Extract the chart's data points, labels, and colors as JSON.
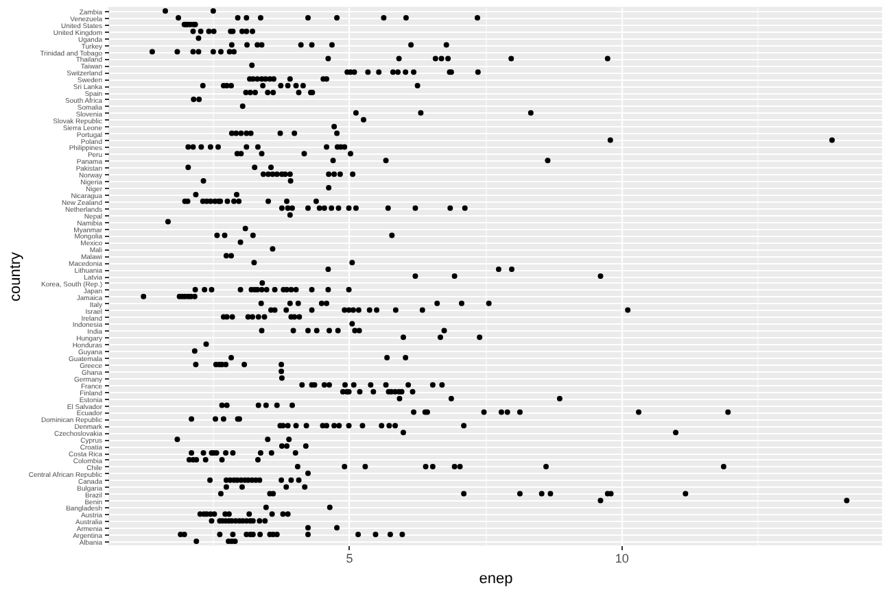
{
  "chart_data": {
    "type": "scatter",
    "orientation": "horizontal",
    "xlabel": "enep",
    "ylabel": "country",
    "marker": "circle",
    "grid": true,
    "xlim": [
      0.585,
      14.79
    ],
    "xticks": [
      {
        "value": 2.5,
        "label": null
      },
      5,
      {
        "value": 7.5,
        "label": null
      },
      10,
      {
        "value": 12.5,
        "label": null
      }
    ],
    "categories": [
      "Zambia",
      "Venezuela",
      "United States",
      "United Kingdom",
      "Uganda",
      "Turkey",
      "Trinidad and Tobago",
      "Thailand",
      "Taiwan",
      "Switzerland",
      "Sweden",
      "Sri Lanka",
      "Spain",
      "South Africa",
      "Somalia",
      "Slovenia",
      "Slovak Republic",
      "Sierra Leone",
      "Portugal",
      "Poland",
      "Philippines",
      "Peru",
      "Panama",
      "Pakistan",
      "Norway",
      "Nigeria",
      "Niger",
      "Nicaragua",
      "New Zealand",
      "Netherlands",
      "Nepal",
      "Namibia",
      "Myanmar",
      "Mongolia",
      "Mexico",
      "Mali",
      "Malawi",
      "Macedonia",
      "Lithuania",
      "Latvia",
      "Korea, South (Rep.)",
      "Japan",
      "Jamaica",
      "Italy",
      "Israel",
      "Ireland",
      "Indonesia",
      "India",
      "Hungary",
      "Honduras",
      "Guyana",
      "Guatemala",
      "Greece",
      "Ghana",
      "Germany",
      "France",
      "Finland",
      "Estonia",
      "El Salvador",
      "Ecuador",
      "Dominican Republic",
      "Denmark",
      "Czechoslovakia",
      "Cyprus",
      "Croatia",
      "Costa Rica",
      "Colombia",
      "Chile",
      "Central African Republic",
      "Canada",
      "Bulgaria",
      "Brazil",
      "Benin",
      "Bangladesh",
      "Austria",
      "Australia",
      "Armenia",
      "Argentina",
      "Albania"
    ],
    "series": [
      {
        "color": "#000000",
        "x": [
          "Zambia",
          "Zambia",
          "Venezuela",
          "Venezuela",
          "Venezuela",
          "Venezuela",
          "Venezuela",
          "Venezuela",
          "Venezuela",
          "Venezuela",
          "Venezuela",
          "United States",
          "United States",
          "United States",
          "United States",
          "United States",
          "United States",
          "United Kingdom",
          "United Kingdom",
          "United Kingdom",
          "United Kingdom",
          "United Kingdom",
          "United Kingdom",
          "United Kingdom",
          "United Kingdom",
          "United Kingdom",
          "Uganda",
          "Turkey",
          "Turkey",
          "Turkey",
          "Turkey",
          "Turkey",
          "Turkey",
          "Turkey",
          "Turkey",
          "Turkey",
          "Trinidad and Tobago",
          "Trinidad and Tobago",
          "Trinidad and Tobago",
          "Trinidad and Tobago",
          "Trinidad and Tobago",
          "Trinidad and Tobago",
          "Trinidad and Tobago",
          "Trinidad and Tobago",
          "Thailand",
          "Thailand",
          "Thailand",
          "Thailand",
          "Thailand",
          "Thailand",
          "Thailand",
          "Taiwan",
          "Switzerland",
          "Switzerland",
          "Switzerland",
          "Switzerland",
          "Switzerland",
          "Switzerland",
          "Switzerland",
          "Switzerland",
          "Switzerland",
          "Switzerland",
          "Switzerland",
          "Switzerland",
          "Sweden",
          "Sweden",
          "Sweden",
          "Sweden",
          "Sweden",
          "Sweden",
          "Sweden",
          "Sweden",
          "Sweden",
          "Sweden",
          "Sri Lanka",
          "Sri Lanka",
          "Sri Lanka",
          "Sri Lanka",
          "Sri Lanka",
          "Sri Lanka",
          "Sri Lanka",
          "Sri Lanka",
          "Sri Lanka",
          "Sri Lanka",
          "Spain",
          "Spain",
          "Spain",
          "Spain",
          "Spain",
          "Spain",
          "Spain",
          "Spain",
          "South Africa",
          "South Africa",
          "Somalia",
          "Slovenia",
          "Slovenia",
          "Slovenia",
          "Slovak Republic",
          "Sierra Leone",
          "Portugal",
          "Portugal",
          "Portugal",
          "Portugal",
          "Portugal",
          "Portugal",
          "Portugal",
          "Portugal",
          "Poland",
          "Poland",
          "Philippines",
          "Philippines",
          "Philippines",
          "Philippines",
          "Philippines",
          "Philippines",
          "Philippines",
          "Philippines",
          "Philippines",
          "Philippines",
          "Philippines",
          "Peru",
          "Peru",
          "Peru",
          "Peru",
          "Peru",
          "Panama",
          "Panama",
          "Panama",
          "Pakistan",
          "Pakistan",
          "Pakistan",
          "Norway",
          "Norway",
          "Norway",
          "Norway",
          "Norway",
          "Norway",
          "Norway",
          "Norway",
          "Norway",
          "Norway",
          "Norway",
          "Nigeria",
          "Nigeria",
          "Niger",
          "Nicaragua",
          "Nicaragua",
          "New Zealand",
          "New Zealand",
          "New Zealand",
          "New Zealand",
          "New Zealand",
          "New Zealand",
          "New Zealand",
          "New Zealand",
          "New Zealand",
          "New Zealand",
          "New Zealand",
          "New Zealand",
          "New Zealand",
          "New Zealand",
          "Netherlands",
          "Netherlands",
          "Netherlands",
          "Netherlands",
          "Netherlands",
          "Netherlands",
          "Netherlands",
          "Netherlands",
          "Netherlands",
          "Netherlands",
          "Netherlands",
          "Netherlands",
          "Netherlands",
          "Netherlands",
          "Nepal",
          "Namibia",
          "Myanmar",
          "Mongolia",
          "Mongolia",
          "Mongolia",
          "Mongolia",
          "Mexico",
          "Mali",
          "Malawi",
          "Malawi",
          "Macedonia",
          "Macedonia",
          "Lithuania",
          "Lithuania",
          "Lithuania",
          "Latvia",
          "Latvia",
          "Latvia",
          "Korea, South (Rep.)",
          "Japan",
          "Japan",
          "Japan",
          "Japan",
          "Japan",
          "Japan",
          "Japan",
          "Japan",
          "Japan",
          "Japan",
          "Japan",
          "Japan",
          "Japan",
          "Japan",
          "Japan",
          "Japan",
          "Japan",
          "Jamaica",
          "Jamaica",
          "Jamaica",
          "Jamaica",
          "Jamaica",
          "Jamaica",
          "Jamaica",
          "Italy",
          "Italy",
          "Italy",
          "Italy",
          "Italy",
          "Italy",
          "Italy",
          "Italy",
          "Israel",
          "Israel",
          "Israel",
          "Israel",
          "Israel",
          "Israel",
          "Israel",
          "Israel",
          "Israel",
          "Israel",
          "Israel",
          "Israel",
          "Israel",
          "Ireland",
          "Ireland",
          "Ireland",
          "Ireland",
          "Ireland",
          "Ireland",
          "Ireland",
          "Ireland",
          "Ireland",
          "Ireland",
          "Indonesia",
          "India",
          "India",
          "India",
          "India",
          "India",
          "India",
          "India",
          "India",
          "India",
          "Hungary",
          "Hungary",
          "Hungary",
          "Honduras",
          "Guyana",
          "Guatemala",
          "Guatemala",
          "Guatemala",
          "Greece",
          "Greece",
          "Greece",
          "Greece",
          "Greece",
          "Greece",
          "Greece",
          "Ghana",
          "Germany",
          "France",
          "France",
          "France",
          "France",
          "France",
          "France",
          "France",
          "France",
          "France",
          "France",
          "France",
          "France",
          "Finland",
          "Finland",
          "Finland",
          "Finland",
          "Finland",
          "Finland",
          "Finland",
          "Finland",
          "Finland",
          "Finland",
          "Finland",
          "Estonia",
          "Estonia",
          "Estonia",
          "El Salvador",
          "El Salvador",
          "El Salvador",
          "El Salvador",
          "El Salvador",
          "El Salvador",
          "Ecuador",
          "Ecuador",
          "Ecuador",
          "Ecuador",
          "Ecuador",
          "Ecuador",
          "Ecuador",
          "Ecuador",
          "Ecuador",
          "Dominican Republic",
          "Dominican Republic",
          "Dominican Republic",
          "Dominican Republic",
          "Dominican Republic",
          "Denmark",
          "Denmark",
          "Denmark",
          "Denmark",
          "Denmark",
          "Denmark",
          "Denmark",
          "Denmark",
          "Denmark",
          "Denmark",
          "Denmark",
          "Denmark",
          "Denmark",
          "Denmark",
          "Denmark",
          "Czechoslovakia",
          "Czechoslovakia",
          "Cyprus",
          "Cyprus",
          "Cyprus",
          "Croatia",
          "Croatia",
          "Croatia",
          "Costa Rica",
          "Costa Rica",
          "Costa Rica",
          "Costa Rica",
          "Costa Rica",
          "Costa Rica",
          "Costa Rica",
          "Costa Rica",
          "Costa Rica",
          "Costa Rica",
          "Colombia",
          "Colombia",
          "Colombia",
          "Colombia",
          "Colombia",
          "Colombia",
          "Chile",
          "Chile",
          "Chile",
          "Chile",
          "Chile",
          "Chile",
          "Chile",
          "Chile",
          "Chile",
          "Central African Republic",
          "Canada",
          "Canada",
          "Canada",
          "Canada",
          "Canada",
          "Canada",
          "Canada",
          "Canada",
          "Canada",
          "Canada",
          "Canada",
          "Canada",
          "Canada",
          "Canada",
          "Bulgaria",
          "Bulgaria",
          "Bulgaria",
          "Bulgaria",
          "Brazil",
          "Brazil",
          "Brazil",
          "Brazil",
          "Brazil",
          "Brazil",
          "Brazil",
          "Brazil",
          "Brazil",
          "Brazil",
          "Benin",
          "Benin",
          "Bangladesh",
          "Bangladesh",
          "Austria",
          "Austria",
          "Austria",
          "Austria",
          "Austria",
          "Austria",
          "Austria",
          "Austria",
          "Austria",
          "Austria",
          "Austria",
          "Australia",
          "Australia",
          "Australia",
          "Australia",
          "Australia",
          "Australia",
          "Australia",
          "Australia",
          "Australia",
          "Australia",
          "Australia",
          "Australia",
          "Australia",
          "Australia",
          "Armenia",
          "Armenia",
          "Argentina",
          "Argentina",
          "Argentina",
          "Argentina",
          "Argentina",
          "Argentina",
          "Argentina",
          "Argentina",
          "Argentina",
          "Argentina",
          "Argentina",
          "Argentina",
          "Argentina",
          "Argentina",
          "Argentina",
          "Argentina",
          "Albania",
          "Albania",
          "Albania",
          "Albania"
        ],
        "values": [
          1.63,
          2.51,
          1.87,
          2.96,
          3.12,
          3.38,
          4.25,
          4.78,
          5.64,
          6.05,
          7.36,
          1.98,
          2.01,
          2.04,
          2.09,
          2.15,
          2.18,
          2.14,
          2.28,
          2.43,
          2.52,
          2.83,
          2.87,
          3.04,
          3.12,
          3.23,
          2.24,
          2.85,
          3.13,
          3.32,
          3.4,
          4.12,
          4.32,
          4.69,
          6.14,
          6.79,
          1.39,
          1.85,
          2.14,
          2.24,
          2.51,
          2.65,
          2.81,
          2.89,
          4.62,
          5.92,
          6.59,
          6.7,
          6.82,
          7.98,
          9.75,
          3.22,
          4.97,
          5.03,
          5.1,
          5.35,
          5.55,
          5.81,
          5.9,
          6.04,
          6.19,
          6.85,
          6.88,
          7.37,
          3.18,
          3.24,
          3.32,
          3.4,
          3.47,
          3.55,
          3.62,
          3.92,
          4.53,
          4.59,
          2.32,
          2.7,
          2.76,
          2.84,
          3.42,
          3.75,
          3.88,
          4.03,
          4.16,
          6.26,
          3.11,
          3.19,
          3.28,
          3.51,
          3.61,
          4.08,
          4.3,
          4.33,
          2.15,
          2.25,
          3.05,
          5.13,
          6.32,
          8.34,
          5.27,
          4.73,
          2.85,
          2.93,
          3.02,
          3.12,
          3.2,
          3.74,
          4.0,
          4.78,
          9.8,
          13.87,
          2.05,
          2.14,
          2.29,
          2.46,
          2.6,
          3.12,
          3.33,
          4.59,
          4.79,
          4.85,
          4.92,
          2.95,
          3.02,
          3.4,
          4.18,
          5.03,
          4.71,
          5.68,
          8.65,
          2.05,
          3.27,
          3.57,
          3.43,
          3.52,
          3.6,
          3.68,
          3.77,
          3.83,
          3.92,
          4.63,
          4.73,
          4.84,
          5.07,
          2.33,
          3.93,
          4.63,
          2.19,
          2.94,
          1.99,
          2.04,
          2.32,
          2.39,
          2.46,
          2.54,
          2.61,
          2.64,
          2.77,
          2.89,
          2.98,
          3.52,
          3.86,
          4.4,
          3.77,
          3.88,
          3.96,
          4.25,
          4.46,
          4.55,
          4.68,
          4.81,
          5.0,
          5.13,
          5.72,
          6.22,
          6.86,
          7.13,
          3.92,
          1.68,
          3.1,
          2.58,
          2.72,
          3.24,
          5.79,
          3.01,
          3.6,
          2.75,
          2.84,
          3.26,
          5.06,
          4.62,
          7.75,
          7.99,
          6.22,
          6.94,
          9.62,
          3.41,
          2.18,
          2.35,
          2.48,
          3.01,
          3.21,
          3.27,
          3.32,
          3.4,
          3.49,
          3.64,
          3.8,
          3.86,
          3.94,
          4.03,
          4.32,
          4.62,
          5.0,
          1.23,
          1.89,
          1.94,
          1.99,
          2.05,
          2.1,
          2.17,
          3.39,
          3.92,
          4.07,
          4.5,
          4.59,
          6.62,
          7.07,
          7.57,
          3.57,
          3.64,
          3.85,
          4.32,
          4.92,
          5.0,
          5.08,
          5.18,
          5.38,
          5.51,
          5.86,
          6.35,
          10.12,
          2.7,
          2.76,
          2.86,
          3.15,
          3.23,
          3.34,
          3.45,
          3.94,
          4.0,
          4.09,
          5.06,
          3.4,
          3.98,
          4.25,
          4.41,
          4.64,
          4.8,
          5.11,
          5.19,
          6.75,
          6.0,
          6.68,
          7.4,
          2.38,
          2.17,
          2.84,
          5.7,
          6.04,
          2.19,
          2.56,
          2.62,
          2.67,
          2.74,
          3.08,
          3.76,
          3.76,
          3.77,
          4.14,
          4.32,
          4.37,
          4.55,
          4.64,
          4.93,
          5.09,
          5.4,
          5.68,
          6.09,
          6.54,
          6.71,
          4.89,
          4.96,
          5.0,
          5.2,
          5.45,
          5.73,
          5.78,
          5.85,
          5.92,
          5.97,
          6.17,
          5.93,
          6.88,
          8.87,
          2.67,
          2.76,
          3.34,
          3.48,
          3.68,
          3.96,
          6.19,
          6.4,
          6.44,
          7.48,
          7.8,
          7.91,
          8.14,
          10.32,
          11.96,
          2.11,
          2.55,
          2.7,
          2.96,
          2.99,
          3.74,
          3.79,
          3.88,
          4.03,
          4.22,
          4.52,
          4.59,
          4.73,
          4.82,
          5.0,
          5.25,
          5.6,
          5.74,
          5.85,
          7.11,
          6.0,
          11.0,
          1.85,
          3.51,
          3.9,
          3.77,
          3.86,
          4.21,
          2.11,
          2.33,
          2.48,
          2.52,
          2.57,
          2.74,
          2.87,
          3.38,
          3.58,
          4.02,
          2.07,
          2.14,
          2.2,
          2.37,
          2.67,
          3.33,
          4.06,
          4.92,
          5.3,
          6.41,
          6.54,
          6.94,
          7.04,
          8.62,
          11.88,
          4.25,
          2.45,
          2.75,
          2.82,
          2.89,
          2.95,
          3.02,
          3.09,
          3.15,
          3.22,
          3.29,
          3.36,
          3.76,
          3.94,
          4.08,
          2.75,
          3.04,
          3.85,
          4.19,
          2.65,
          3.55,
          3.61,
          7.11,
          8.14,
          8.54,
          8.7,
          9.75,
          9.81,
          11.18,
          9.62,
          14.14,
          3.48,
          4.65,
          2.27,
          2.34,
          2.39,
          2.46,
          2.53,
          2.73,
          2.8,
          3.17,
          3.59,
          3.79,
          3.88,
          2.48,
          2.63,
          2.68,
          2.74,
          2.8,
          2.85,
          2.92,
          2.99,
          3.05,
          3.12,
          3.19,
          3.24,
          3.36,
          3.46,
          4.25,
          4.78,
          1.91,
          1.98,
          2.63,
          2.87,
          3.12,
          3.19,
          3.24,
          3.37,
          3.55,
          3.61,
          3.68,
          4.25,
          5.17,
          5.49,
          5.76,
          5.98,
          2.2,
          2.79,
          2.85,
          2.91
        ]
      }
    ]
  }
}
